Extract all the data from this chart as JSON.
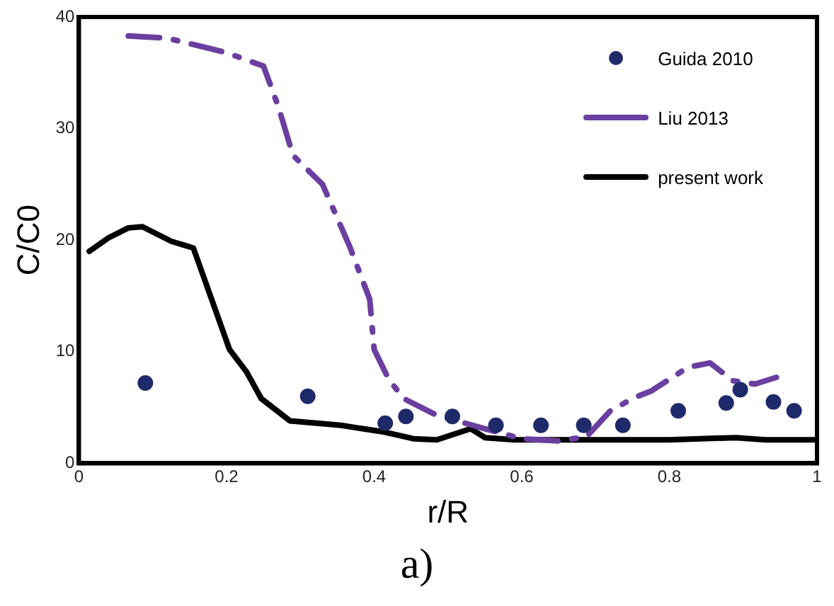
{
  "chart_data": {
    "type": "line",
    "xlabel": "r/R",
    "ylabel": "C/C0",
    "xlim": [
      0,
      1
    ],
    "xticks": [
      0,
      0.2,
      0.4,
      0.6,
      0.8,
      1
    ],
    "ylim": [
      0,
      40
    ],
    "yticks": [
      0,
      10,
      20,
      30,
      40
    ],
    "grid": false,
    "legend": "top right",
    "annotations": [
      "a)"
    ],
    "series": [
      {
        "name": "Guida 2010",
        "type": "scatter",
        "marker": "circle",
        "color": "#1f2a6b",
        "x": [
          0.09,
          0.31,
          0.415,
          0.443,
          0.506,
          0.565,
          0.626,
          0.684,
          0.737,
          0.812,
          0.877,
          0.896,
          0.941,
          0.969
        ],
        "values": [
          7.2,
          6.0,
          3.6,
          4.2,
          4.2,
          3.4,
          3.4,
          3.4,
          3.4,
          4.7,
          5.4,
          6.6,
          5.5,
          4.7
        ]
      },
      {
        "name": "Liu 2013",
        "type": "line",
        "line_style": "dashed",
        "marker": "none",
        "color": "#6a3fa0",
        "x": [
          0.067,
          0.12,
          0.2,
          0.25,
          0.27,
          0.29,
          0.33,
          0.367,
          0.394,
          0.4,
          0.42,
          0.44,
          0.485,
          0.55,
          0.6,
          0.65,
          0.688,
          0.72,
          0.753,
          0.776,
          0.825,
          0.855,
          0.886,
          0.916,
          0.945
        ],
        "values": [
          38.3,
          38.1,
          36.8,
          35.6,
          32,
          27.6,
          25,
          19.4,
          14.7,
          10.2,
          7.5,
          5.8,
          4.3,
          3.1,
          2.2,
          2.0,
          2.4,
          4.7,
          5.9,
          6.5,
          8.6,
          9.0,
          7.4,
          7.1,
          7.7
        ]
      },
      {
        "name": "present work",
        "type": "line",
        "line_style": "solid",
        "marker": "none",
        "color": "#000000",
        "x": [
          0.014,
          0.04,
          0.067,
          0.086,
          0.125,
          0.155,
          0.204,
          0.227,
          0.247,
          0.286,
          0.355,
          0.414,
          0.453,
          0.485,
          0.531,
          0.55,
          0.59,
          0.7,
          0.8,
          0.89,
          0.93,
          1.0
        ],
        "values": [
          19.0,
          20.2,
          21.1,
          21.2,
          19.9,
          19.3,
          10.2,
          8.2,
          5.8,
          3.8,
          3.4,
          2.8,
          2.2,
          2.1,
          3.1,
          2.3,
          2.1,
          2.1,
          2.1,
          2.3,
          2.1,
          2.1
        ]
      }
    ]
  }
}
